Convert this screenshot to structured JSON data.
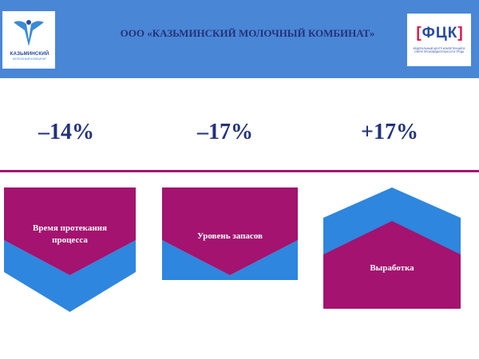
{
  "header": {
    "title": "ООО «КАЗЬМИНСКИЙ МОЛОЧНЫЙ КОМБИНАТ»",
    "logo_left": {
      "name": "КАЗЬМИНСКИЙ",
      "subtitle": "МОЛОЧНЫЙ КОМБИНАТ"
    },
    "logo_right": {
      "mark": "ФЦК",
      "caption": "ФЕДЕРАЛЬНЫЙ ЦЕНТР КОМПЕТЕНЦИЙ В СФЕРЕ ПРОИЗВОДИТЕЛЬНОСТИ ТРУДА"
    }
  },
  "metrics": [
    {
      "value": "–14%",
      "label": "Время протекания процесса",
      "direction": "down"
    },
    {
      "value": "–17%",
      "label": "Уровень запасов",
      "direction": "down"
    },
    {
      "value": "+17%",
      "label": "Выработка",
      "direction": "up"
    }
  ],
  "colors": {
    "blue": "#2e86de",
    "magenta": "#a3136f",
    "header": "#4a86d6",
    "text": "#23327a"
  }
}
